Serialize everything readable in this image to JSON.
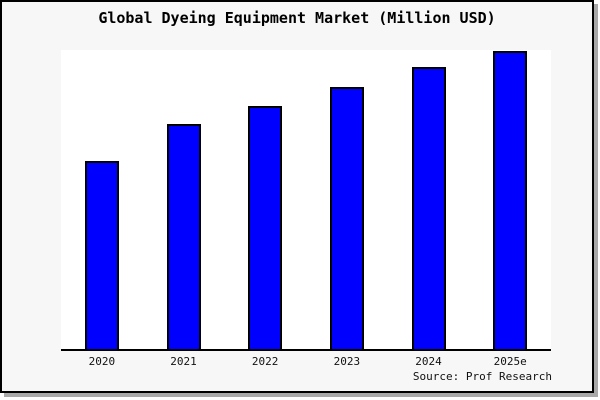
{
  "chart_data": {
    "type": "bar",
    "title": "Global Dyeing Equipment Market (Million USD)",
    "categories": [
      "2020",
      "2021",
      "2022",
      "2023",
      "2024",
      "2025e"
    ],
    "values": [
      63,
      75,
      82,
      88,
      94,
      100
    ],
    "values_note": "no y-axis scale rendered in image; values are relative units estimated from bar heights with 2025e = 100",
    "heights_pct": [
      62.8,
      75.1,
      81.4,
      87.7,
      94.4,
      99.7
    ],
    "xlabel": "",
    "ylabel": "",
    "y_axis_visible": false,
    "gridlines": false,
    "legend": null,
    "bar_color": "#0000ff",
    "bar_border_color": "#000000",
    "plot_background": "#ffffff",
    "page_background": "#f7f7f7",
    "frame_border_color": "#000000",
    "shadow_color": "#a9a9a9"
  },
  "footer": {
    "source": "Source: Prof Research"
  }
}
